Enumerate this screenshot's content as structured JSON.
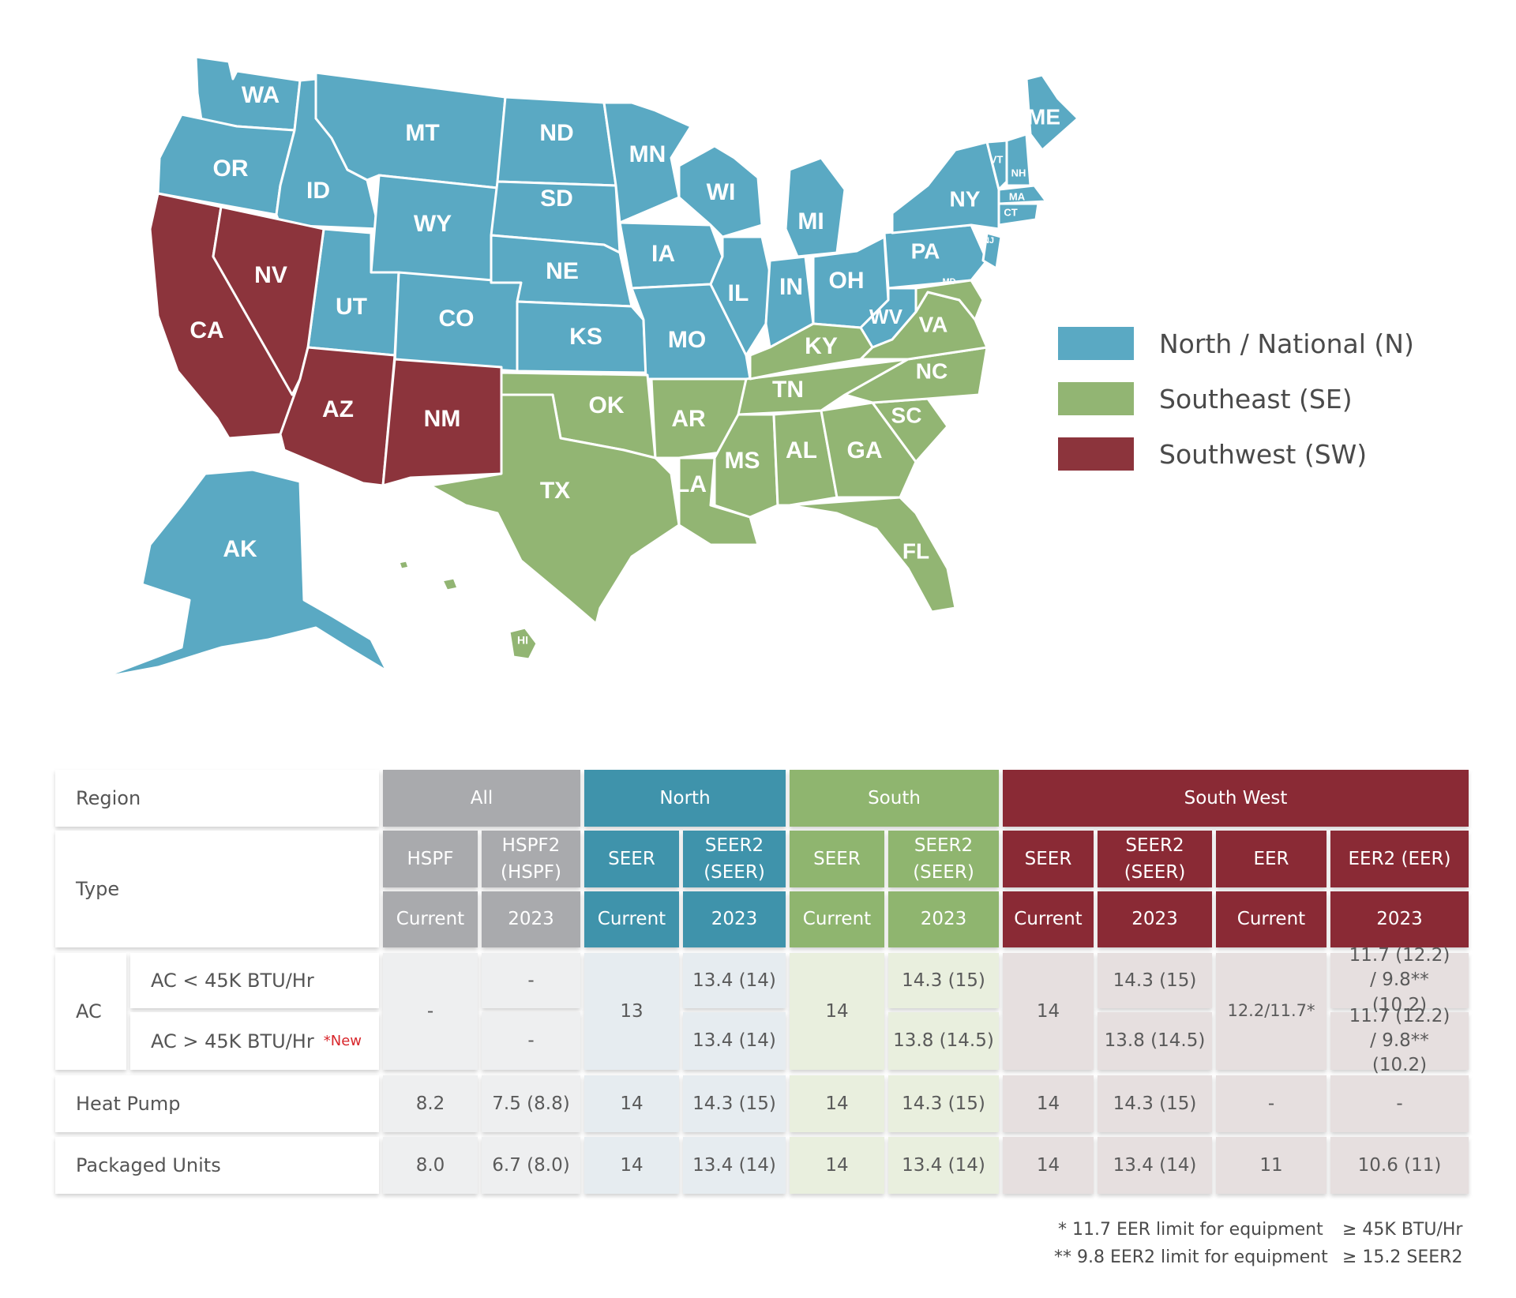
{
  "colors": {
    "north": "#5aa9c3",
    "southeast": "#92b573",
    "southwest": "#8c343c"
  },
  "legend": [
    {
      "label": "North / National (N)",
      "color": "#5aa9c3"
    },
    {
      "label": "Southeast (SE)",
      "color": "#92b573"
    },
    {
      "label": "Southwest (SW)",
      "color": "#8c343c"
    }
  ],
  "states": {
    "WA": "WA",
    "OR": "OR",
    "CA": "CA",
    "NV": "NV",
    "ID": "ID",
    "MT": "MT",
    "WY": "WY",
    "UT": "UT",
    "AZ": "AZ",
    "CO": "CO",
    "NM": "NM",
    "ND": "ND",
    "SD": "SD",
    "NE": "NE",
    "KS": "KS",
    "OK": "OK",
    "TX": "TX",
    "MN": "MN",
    "IA": "IA",
    "MO": "MO",
    "AR": "AR",
    "LA": "LA",
    "WI": "WI",
    "IL": "IL",
    "MI": "MI",
    "IN": "IN",
    "OH": "OH",
    "KY": "KY",
    "TN": "TN",
    "MS": "MS",
    "AL": "AL",
    "GA": "GA",
    "FL": "FL",
    "SC": "SC",
    "NC": "NC",
    "VA": "VA",
    "WV": "WV",
    "PA": "PA",
    "NY": "NY",
    "ME": "ME",
    "VT": "VT",
    "NH": "NH",
    "MA": "MA",
    "CT": "CT",
    "NJ": "NJ",
    "MD": "MD",
    "AK": "AK",
    "HI": "HI"
  },
  "table": {
    "region_label": "Region",
    "type_label": "Type",
    "regions": {
      "all": "All",
      "north": "North",
      "south": "South",
      "southwest": "South West"
    },
    "types": {
      "hspf": "HSPF",
      "hspf2": "HSPF2 (HSPF)",
      "n_seer": "SEER",
      "n_seer2": "SEER2 (SEER)",
      "s_seer": "SEER",
      "s_seer2": "SEER2 (SEER)",
      "sw_seer": "SEER",
      "sw_seer2": "SEER2 (SEER)",
      "sw_eer": "EER",
      "sw_eer2": "EER2 (EER)"
    },
    "years": {
      "current": "Current",
      "y2023": "2023"
    },
    "rows": {
      "ac": "AC",
      "ac_small": "AC < 45K BTU/Hr",
      "ac_large": "AC > 45K BTU/Hr",
      "new_tag": "*New",
      "heat_pump": "Heat Pump",
      "packaged": "Packaged Units"
    },
    "values": {
      "ac_hspf": "-",
      "ac_small_hspf2": "-",
      "ac_large_hspf2": "-",
      "ac_n_seer": "13",
      "ac_small_n_seer2": "13.4 (14)",
      "ac_large_n_seer2": "13.4 (14)",
      "ac_s_seer": "14",
      "ac_small_s_seer2": "14.3 (15)",
      "ac_large_s_seer2": "13.8 (14.5)",
      "ac_sw_seer": "14",
      "ac_small_sw_seer2": "14.3 (15)",
      "ac_large_sw_seer2": "13.8 (14.5)",
      "ac_sw_eer": "12.2/11.7*",
      "ac_small_sw_eer2": "11.7 (12.2) / 9.8** (10.2)",
      "ac_large_sw_eer2": "11.7 (12.2) / 9.8** (10.2)",
      "hp": [
        "8.2",
        "7.5 (8.8)",
        "14",
        "14.3 (15)",
        "14",
        "14.3 (15)",
        "14",
        "14.3 (15)",
        "-",
        "-"
      ],
      "pu": [
        "8.0",
        "6.7 (8.0)",
        "14",
        "13.4 (14)",
        "14",
        "13.4 (14)",
        "14",
        "13.4 (14)",
        "11",
        "10.6 (11)"
      ]
    },
    "footnotes": {
      "f1_text": "* 11.7 EER limit for equipment",
      "f1_value": "≥ 45K BTU/Hr",
      "f2_text": "** 9.8 EER2 limit for equipment",
      "f2_value": "≥ 15.2 SEER2"
    }
  }
}
